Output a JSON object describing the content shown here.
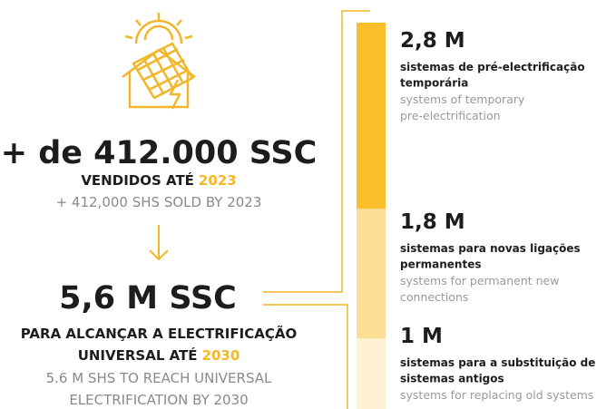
{
  "left": {
    "headline": "+ de 412.000 SSC",
    "sold_label": "VENDIDOS ATÉ",
    "sold_year": "2023",
    "sold_en": "+ 412,000 SHS SOLD BY 2023",
    "target": "5,6 M SSC",
    "target_line1": "PARA ALCANÇAR A ELECTRIFICAÇÃO",
    "target_line2": "UNIVERSAL ATÉ",
    "target_year": "2030",
    "target_en": [
      "5.6 M SHS TO REACH UNIVERSAL",
      "ELECTRIFICATION BY 2030"
    ]
  },
  "items": [
    {
      "value": "2,8 M",
      "pt": [
        "sistemas de pré-electrificação",
        "temporária"
      ],
      "en": [
        "systems of temporary",
        "pre-electrification"
      ]
    },
    {
      "value": "1,8 M",
      "pt": [
        "sistemas para novas ligações",
        "permanentes"
      ],
      "en": [
        "systems for permanent new",
        "connections"
      ]
    },
    {
      "value": "1 M",
      "pt": [
        "sistemas para a substituição de",
        "sistemas antigos"
      ],
      "en": [
        "systems for replacing old systems"
      ]
    }
  ]
}
